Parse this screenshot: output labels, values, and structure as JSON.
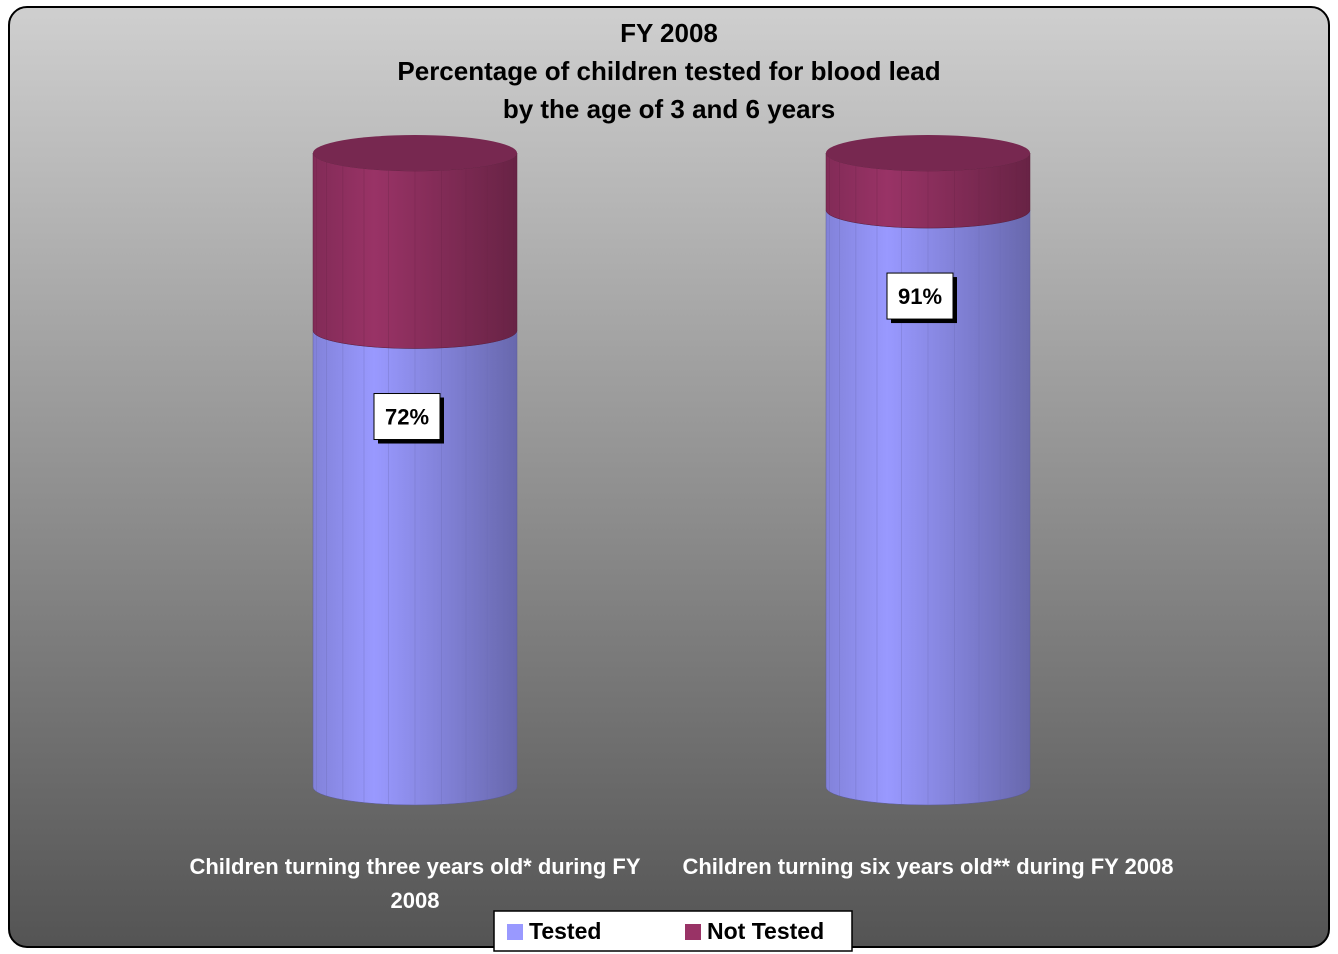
{
  "chart_data": {
    "type": "stacked-cylinder",
    "title": [
      "FY 2008",
      "Percentage of children tested for blood lead",
      "by the age of 3 and 6 years"
    ],
    "categories": [
      "Children turning three years old* during FY 2008",
      "Children turning six years old** during FY 2008"
    ],
    "series": [
      {
        "name": "Tested",
        "color": "#9999ff",
        "values": [
          72,
          91
        ],
        "value_labels": [
          "72%",
          "91%"
        ]
      },
      {
        "name": "Not Tested",
        "color": "#993366",
        "values": [
          28,
          9
        ]
      }
    ],
    "ylim": [
      0,
      100
    ],
    "legend": "bottom"
  }
}
